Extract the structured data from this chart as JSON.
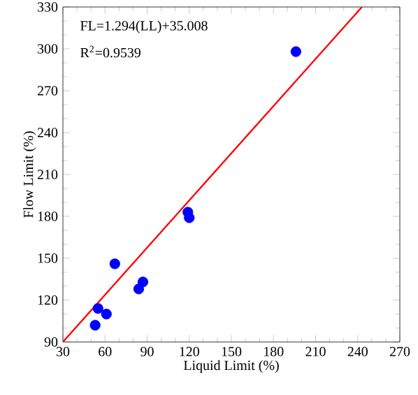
{
  "chart_data": {
    "type": "scatter",
    "xlabel": "Liquid Limit (%)",
    "ylabel": "Flow Limit (%)",
    "xlim": [
      30,
      270
    ],
    "ylim": [
      90,
      330
    ],
    "xticks": [
      30,
      60,
      90,
      120,
      150,
      180,
      210,
      240,
      270
    ],
    "yticks": [
      90,
      120,
      150,
      180,
      210,
      240,
      270,
      300,
      330
    ],
    "annotations": [
      "FL=1.294(LL)+35.008",
      "R$^{2}$=0.9539"
    ],
    "series": [
      {
        "color": "#0000ff",
        "marker": "circle",
        "x": [
          196,
          119,
          120,
          67,
          87,
          84,
          55,
          61,
          53
        ],
        "values": [
          298,
          183,
          179,
          146,
          133,
          128,
          114,
          110,
          102
        ]
      },
      {
        "type": "line",
        "color": "#ff0000",
        "marker": "none",
        "line_style": "solid",
        "x": [
          30,
          243
        ],
        "values": [
          90,
          330
        ]
      }
    ]
  }
}
